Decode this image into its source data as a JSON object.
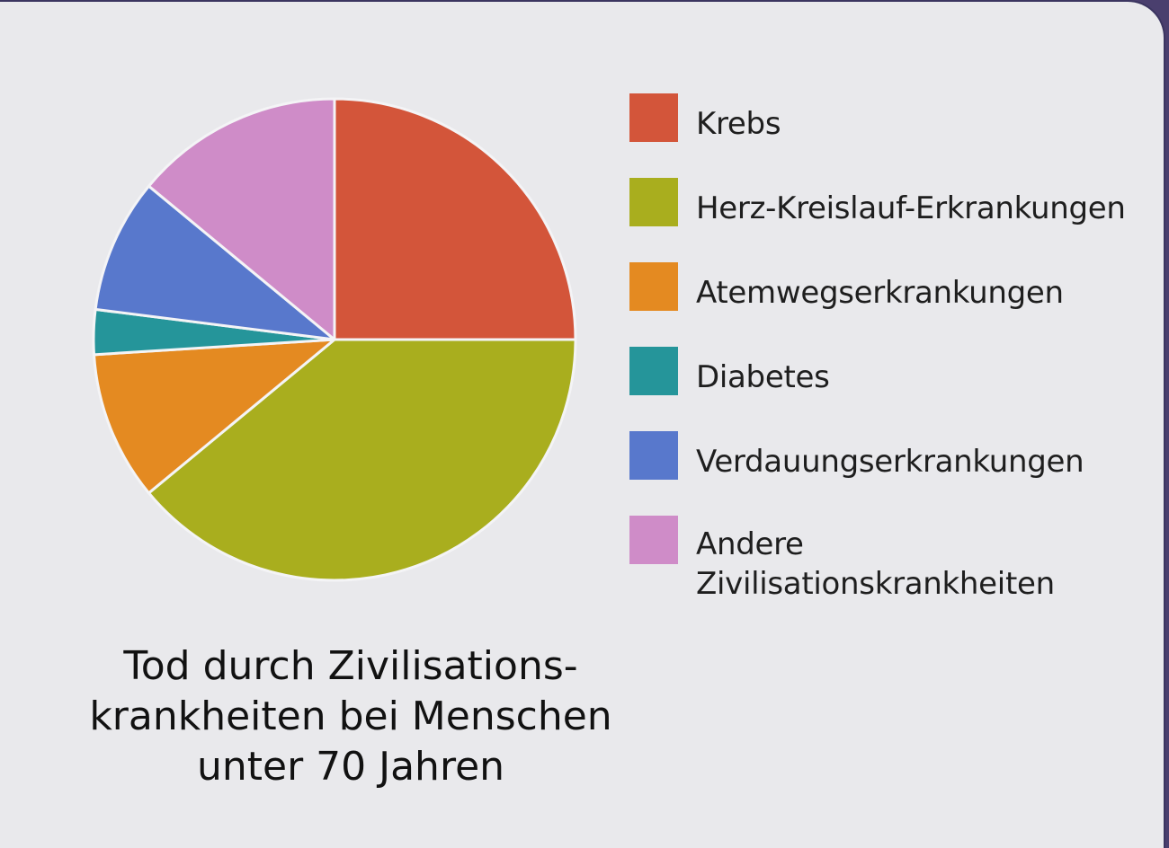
{
  "chart_data": {
    "type": "pie",
    "title_lines": [
      "Tod durch Zivilisations-",
      "krankheiten bei Menschen",
      "unter 70 Jahren"
    ],
    "categories": [
      "Krebs",
      "Herz-Kreislauf-Erkrankungen",
      "Atemwegserkrankungen",
      "Diabetes",
      "Verdauungserkrankungen",
      "Andere Zivilisationskrankheiten"
    ],
    "legend_lines": [
      [
        "Krebs"
      ],
      [
        "Herz-Kreislauf-Erkrankungen"
      ],
      [
        "Atemwegserkrankungen"
      ],
      [
        "Diabetes"
      ],
      [
        "Verdauungserkrankungen"
      ],
      [
        "Andere",
        "Zivilisationskrankheiten"
      ]
    ],
    "values": [
      25,
      39,
      10,
      3,
      9,
      14
    ],
    "colors": [
      "#d3553a",
      "#a9ae1e",
      "#e48a21",
      "#25959a",
      "#5878cc",
      "#cf8cc8"
    ],
    "legend_position": "right",
    "start_angle": "12 o'clock",
    "direction": "clockwise"
  }
}
